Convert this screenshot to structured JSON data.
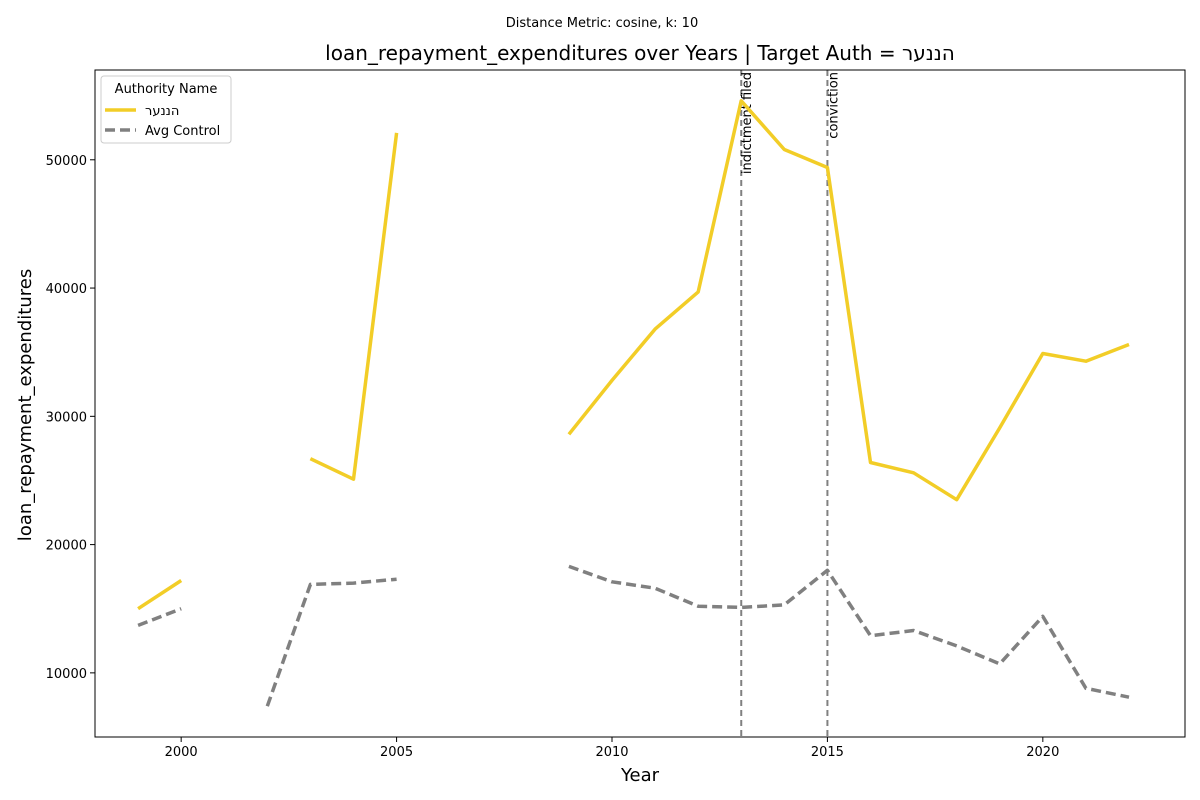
{
  "chart_data": {
    "type": "line",
    "suptitle": "Distance Metric: cosine, k: 10",
    "title": "loan_repayment_expenditures over Years | Target Auth = הננער",
    "xlabel": "Year",
    "ylabel": "loan_repayment_expenditures",
    "xlim": [
      1998,
      2023.3
    ],
    "ylim": [
      5000,
      57000
    ],
    "xticks": [
      2000,
      2005,
      2010,
      2015,
      2020
    ],
    "yticks": [
      10000,
      20000,
      30000,
      40000,
      50000
    ],
    "x": [
      1999,
      2000,
      2001,
      2002,
      2003,
      2004,
      2005,
      2006,
      2007,
      2008,
      2009,
      2010,
      2011,
      2012,
      2013,
      2014,
      2015,
      2016,
      2017,
      2018,
      2019,
      2020,
      2021,
      2022
    ],
    "series": [
      {
        "name": "הננער",
        "color": "#f2cd27",
        "style": "solid",
        "values": [
          15000,
          17200,
          null,
          null,
          26700,
          25100,
          52100,
          null,
          null,
          null,
          28600,
          32800,
          36800,
          39700,
          54600,
          50800,
          49400,
          26400,
          25600,
          23500,
          29100,
          34900,
          34300,
          35600
        ]
      },
      {
        "name": "Avg Control",
        "color": "#808080",
        "style": "dashed",
        "values": [
          13700,
          15000,
          null,
          7400,
          16900,
          17000,
          17300,
          null,
          null,
          null,
          18300,
          17100,
          16600,
          15200,
          15100,
          15300,
          18000,
          12900,
          13300,
          12100,
          10700,
          14400,
          8800,
          8100
        ]
      }
    ],
    "events": [
      {
        "x": 2013,
        "label": "indictment filed"
      },
      {
        "x": 2015,
        "label": "conviction"
      }
    ],
    "legend": {
      "title": "Authority Name",
      "position": "top-left"
    },
    "grid": false
  }
}
